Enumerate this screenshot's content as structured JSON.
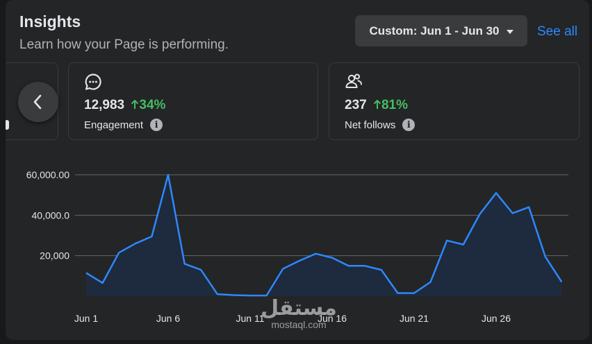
{
  "header": {
    "title": "Insights",
    "subtitle": "Learn how your Page is performing.",
    "date_range": "Custom: Jun 1 - Jun 30",
    "see_all": "See all"
  },
  "metrics": [
    {
      "icon": "comment-bubble-icon",
      "value": "12,983",
      "delta": "34%",
      "label": "Engagement"
    },
    {
      "icon": "people-follow-icon",
      "value": "237",
      "delta": "81%",
      "label": "Net follows"
    }
  ],
  "watermark": {
    "arabic": "مستقل",
    "latin": "mostaql.com"
  },
  "colors": {
    "line": "#2d88ff",
    "delta_positive": "#45bd62",
    "link": "#2d88ff"
  },
  "chart_data": {
    "type": "area",
    "x": [
      "Jun 1",
      "Jun 2",
      "Jun 3",
      "Jun 4",
      "Jun 5",
      "Jun 6",
      "Jun 7",
      "Jun 8",
      "Jun 9",
      "Jun 10",
      "Jun 11",
      "Jun 12",
      "Jun 13",
      "Jun 14",
      "Jun 15",
      "Jun 16",
      "Jun 17",
      "Jun 18",
      "Jun 19",
      "Jun 20",
      "Jun 21",
      "Jun 22",
      "Jun 23",
      "Jun 24",
      "Jun 25",
      "Jun 26",
      "Jun 27",
      "Jun 28",
      "Jun 29",
      "Jun 30"
    ],
    "values": [
      11500,
      6500,
      21500,
      26000,
      29500,
      60000,
      16000,
      13000,
      1000,
      500,
      300,
      300,
      13500,
      17500,
      21000,
      19000,
      15000,
      15000,
      13000,
      1500,
      1500,
      7000,
      27500,
      25500,
      40500,
      51000,
      41000,
      44000,
      19500,
      7000
    ],
    "xticks": [
      "Jun 1",
      "Jun 6",
      "Jun 11",
      "Jun 16",
      "Jun 21",
      "Jun 26"
    ],
    "yticks": [
      {
        "value": 20000,
        "label": "20,000"
      },
      {
        "value": 40000,
        "label": "40,000.0"
      },
      {
        "value": 60000,
        "label": "60,000.00"
      }
    ],
    "ylim": [
      0,
      60000
    ],
    "grid": true
  }
}
